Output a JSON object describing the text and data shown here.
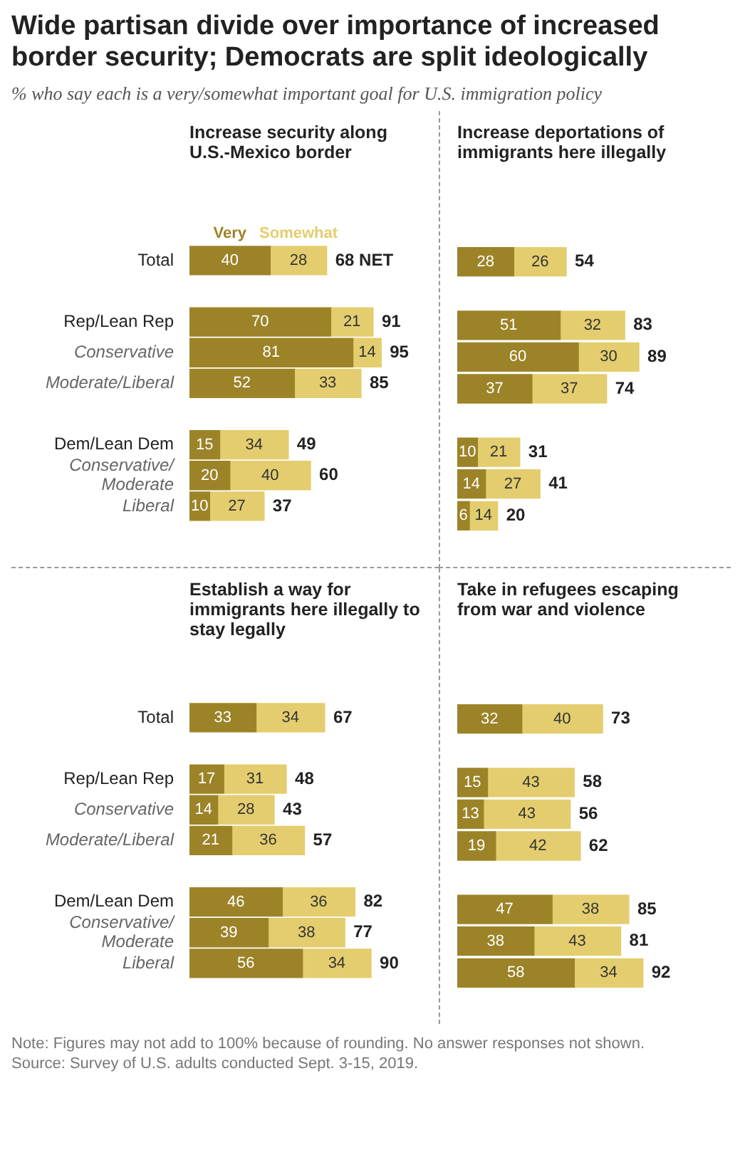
{
  "chart_data": [
    {
      "type": "other",
      "title": "Wide partisan divide over importance of increased border security; Democrats are split ideologically",
      "subtitle": "% who say each is a very/somewhat important goal for U.S. immigration policy"
    },
    {
      "type": "bar",
      "orientation": "horizontal",
      "stacked": true,
      "data_labels": true,
      "legend": "top left",
      "tick_labels": "y",
      "title": "Increase security along U.S.-Mexico border",
      "categories": [
        "Total",
        "Rep/Lean Rep",
        "Conservative",
        "Moderate/Liberal",
        "Dem/Lean Dem",
        "Conservative/\nModerate",
        "Liberal"
      ],
      "series": [
        {
          "name": "Very",
          "color": "#9c8327",
          "values": [
            40,
            70,
            81,
            52,
            15,
            20,
            10
          ]
        },
        {
          "name": "Somewhat",
          "color": "#e4cd6e",
          "values": [
            28,
            21,
            14,
            33,
            34,
            40,
            27
          ]
        }
      ],
      "totals": [
        "68 NET",
        "91",
        "95",
        "85",
        "49",
        "60",
        "37"
      ]
    },
    {
      "type": "bar",
      "orientation": "horizontal",
      "stacked": true,
      "data_labels": true,
      "title": "Increase deportations of immigrants here illegally",
      "categories": [
        null,
        null,
        null,
        null,
        null,
        null,
        null
      ],
      "series": [
        {
          "color": "#9c8327",
          "values": [
            28,
            51,
            60,
            37,
            10,
            14,
            6
          ]
        },
        {
          "color": "#e4cd6e",
          "values": [
            26,
            32,
            30,
            37,
            21,
            27,
            14
          ]
        }
      ],
      "totals": [
        "54",
        "83",
        "89",
        "74",
        "31",
        "41",
        "20"
      ]
    },
    {
      "type": "bar",
      "orientation": "horizontal",
      "stacked": true,
      "data_labels": true,
      "tick_labels": "y",
      "title": "Establish a way for immigrants here illegally to stay legally",
      "categories": [
        "Total",
        "Rep/Lean Rep",
        "Conservative",
        "Moderate/Liberal",
        "Dem/Lean Dem",
        "Conservative/\nModerate",
        "Liberal"
      ],
      "series": [
        {
          "color": "#9c8327",
          "values": [
            33,
            17,
            14,
            21,
            46,
            39,
            56
          ]
        },
        {
          "color": "#e4cd6e",
          "values": [
            34,
            31,
            28,
            36,
            36,
            38,
            34
          ]
        }
      ],
      "totals": [
        "67",
        "48",
        "43",
        "57",
        "82",
        "77",
        "90"
      ]
    },
    {
      "type": "bar",
      "orientation": "horizontal",
      "stacked": true,
      "data_labels": true,
      "title": "Take in refugees escaping from war and violence",
      "categories": [
        null,
        null,
        null,
        null,
        null,
        null,
        null
      ],
      "series": [
        {
          "color": "#9c8327",
          "values": [
            32,
            15,
            13,
            19,
            47,
            38,
            58
          ]
        },
        {
          "color": "#e4cd6e",
          "values": [
            40,
            43,
            43,
            42,
            38,
            43,
            34
          ]
        }
      ],
      "totals": [
        "73",
        "58",
        "56",
        "62",
        "85",
        "81",
        "92"
      ]
    },
    {
      "type": "other",
      "annotations": [
        "Note: Figures may not add to 100% because of rounding. No answer responses not shown.",
        "Source: Survey of U.S. adults conducted Sept. 3-15, 2019."
      ]
    }
  ]
}
